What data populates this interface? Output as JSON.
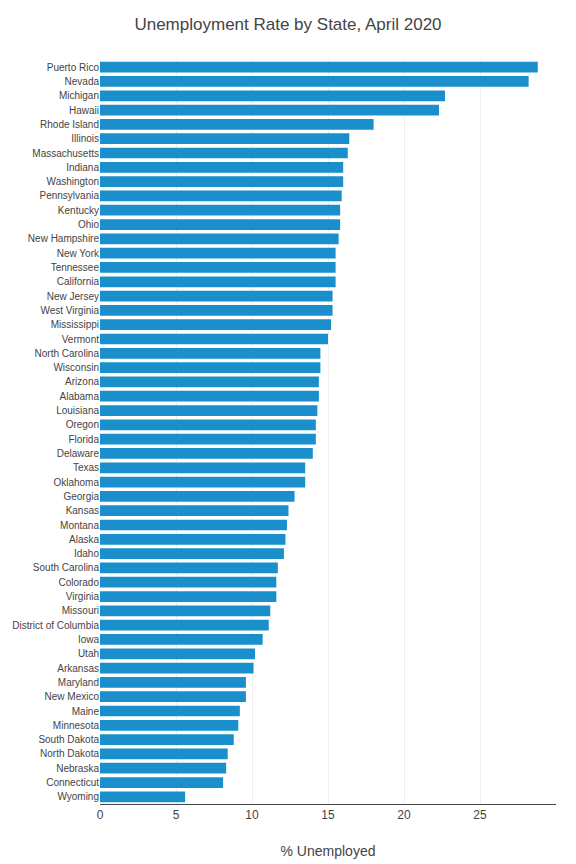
{
  "chart_data": {
    "type": "bar",
    "orientation": "horizontal",
    "title": "Unemployment Rate by State, April 2020",
    "xlabel": "% Unemployed",
    "categories": [
      "Puerto Rico",
      "Nevada",
      "Michigan",
      "Hawaii",
      "Rhode Island",
      "Illinois",
      "Massachusetts",
      "Indiana",
      "Washington",
      "Pennsylvania",
      "Kentucky",
      "Ohio",
      "New Hampshire",
      "New York",
      "Tennessee",
      "California",
      "New Jersey",
      "West Virginia",
      "Mississippi",
      "Vermont",
      "North Carolina",
      "Wisconsin",
      "Arizona",
      "Alabama",
      "Louisiana",
      "Oregon",
      "Florida",
      "Delaware",
      "Texas",
      "Oklahoma",
      "Georgia",
      "Kansas",
      "Montana",
      "Alaska",
      "Idaho",
      "South Carolina",
      "Colorado",
      "Virginia",
      "Missouri",
      "District of Columbia",
      "Iowa",
      "Utah",
      "Arkansas",
      "Maryland",
      "New Mexico",
      "Maine",
      "Minnesota",
      "South Dakota",
      "North Dakota",
      "Nebraska",
      "Connecticut",
      "Wyoming"
    ],
    "values": [
      28.8,
      28.2,
      22.7,
      22.3,
      18.0,
      16.4,
      16.3,
      16.0,
      16.0,
      15.9,
      15.8,
      15.8,
      15.7,
      15.5,
      15.5,
      15.5,
      15.3,
      15.3,
      15.2,
      15.0,
      14.5,
      14.5,
      14.4,
      14.4,
      14.3,
      14.2,
      14.2,
      14.0,
      13.5,
      13.5,
      12.8,
      12.4,
      12.3,
      12.2,
      12.1,
      11.7,
      11.6,
      11.6,
      11.2,
      11.1,
      10.7,
      10.2,
      10.1,
      9.6,
      9.6,
      9.2,
      9.1,
      8.8,
      8.4,
      8.3,
      8.1,
      5.6
    ],
    "color": "#1a8fcb",
    "xlim": [
      0,
      30
    ],
    "xticks": [
      0,
      5,
      10,
      15,
      20,
      25
    ],
    "grid": true
  }
}
